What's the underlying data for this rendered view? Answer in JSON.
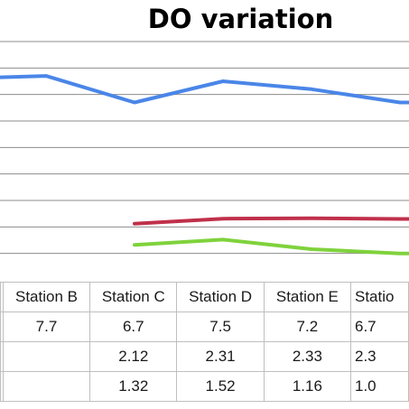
{
  "chart_data": {
    "type": "line",
    "title": "DO variation",
    "categories": [
      "Station B",
      "Station C",
      "Station D",
      "Station E",
      "Statio"
    ],
    "series": [
      {
        "color": "#4a86e8",
        "values": [
          7.7,
          6.7,
          7.5,
          7.2,
          6.7
        ]
      },
      {
        "color": "#c0304a",
        "values": [
          null,
          2.12,
          2.31,
          2.33,
          2.3
        ]
      },
      {
        "color": "#7fd23c",
        "values": [
          null,
          1.32,
          1.52,
          1.16,
          1.0
        ]
      }
    ],
    "table_rows": [
      [
        "7.7",
        "6.7",
        "7.5",
        "7.2",
        "6.7"
      ],
      [
        "",
        "2.12",
        "2.31",
        "2.33",
        "2.3"
      ],
      [
        "",
        "1.32",
        "1.52",
        "1.16",
        "1.0"
      ]
    ],
    "ylim": [
      0,
      9
    ],
    "grid": true
  }
}
